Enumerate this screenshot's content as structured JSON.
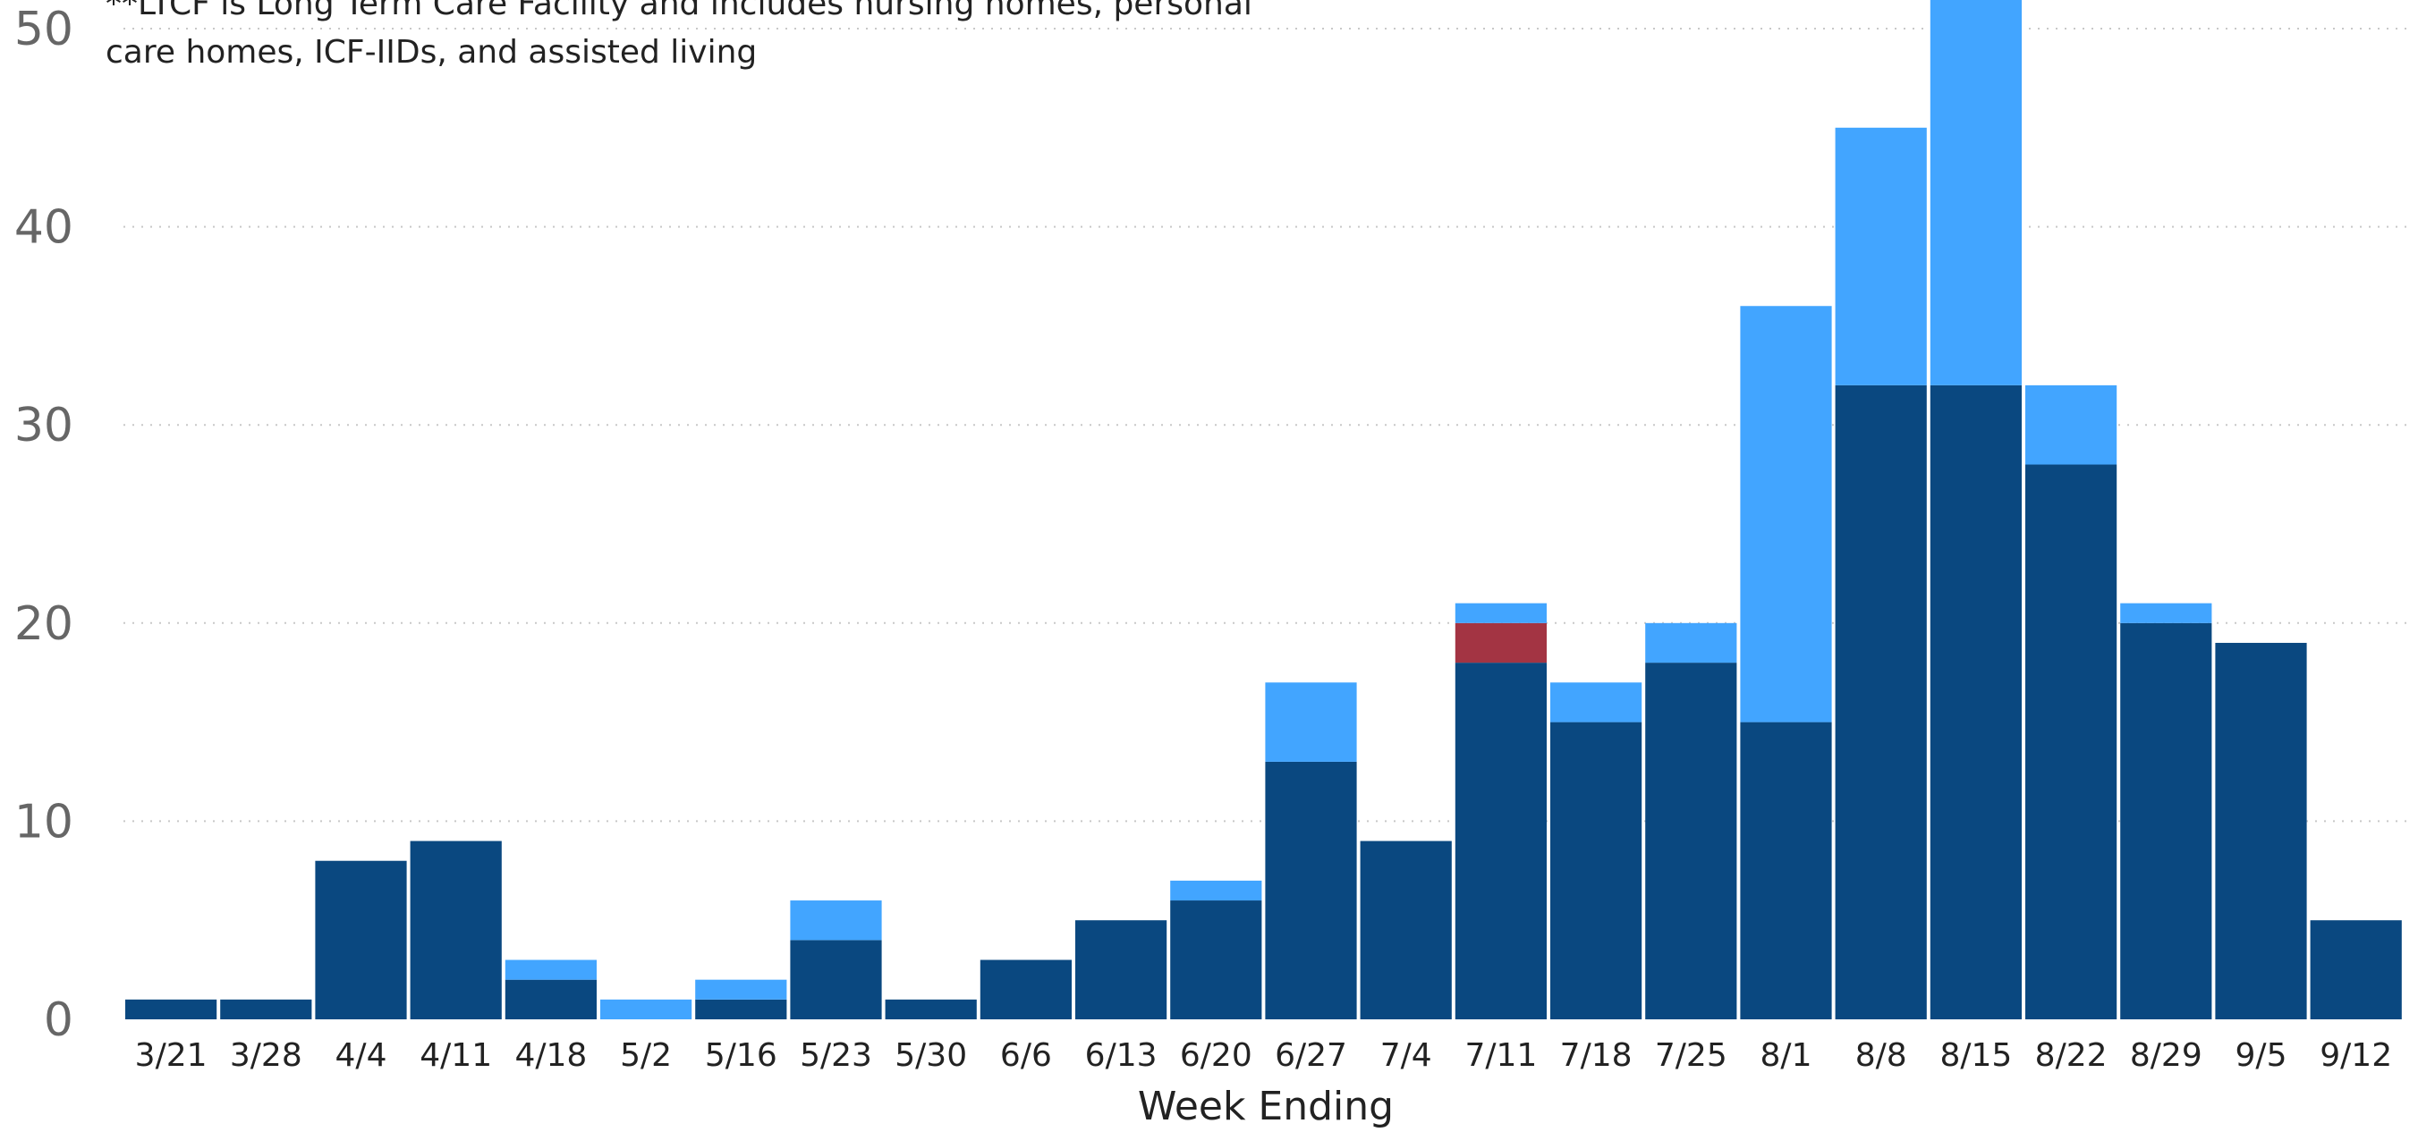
{
  "chart_data": {
    "type": "bar",
    "stacked": true,
    "categories": [
      "3/21",
      "3/28",
      "4/4",
      "4/11",
      "4/18",
      "5/2",
      "5/16",
      "5/23",
      "5/30",
      "6/6",
      "6/13",
      "6/20",
      "6/27",
      "7/4",
      "7/11",
      "7/18",
      "7/25",
      "8/1",
      "8/8",
      "8/15",
      "8/22",
      "8/29",
      "9/5",
      "9/12"
    ],
    "series": [
      {
        "color": "#0a4880",
        "values": [
          1,
          1,
          8,
          9,
          2,
          0,
          1,
          4,
          1,
          3,
          5,
          6,
          13,
          9,
          18,
          15,
          18,
          15,
          32,
          32,
          28,
          20,
          19,
          5
        ]
      },
      {
        "color": "#a33443",
        "values": [
          0,
          0,
          0,
          0,
          0,
          0,
          0,
          0,
          0,
          0,
          0,
          0,
          0,
          0,
          2,
          0,
          0,
          0,
          0,
          0,
          0,
          0,
          0,
          0
        ]
      },
      {
        "color": "#42a5ff",
        "values": [
          0,
          0,
          0,
          0,
          1,
          1,
          1,
          2,
          0,
          0,
          0,
          1,
          4,
          0,
          1,
          2,
          2,
          21,
          13,
          20,
          4,
          1,
          0,
          0
        ]
      }
    ],
    "xlabel": "Week Ending",
    "ylabel": "",
    "yticks": [
      0,
      10,
      20,
      30,
      40,
      50
    ],
    "ylim": [
      0,
      52
    ],
    "grid": true,
    "annotation": {
      "lines": [
        "**LTCF is Long Term Care Facility and includes nursing homes, personal",
        "care homes, ICF-IIDs, and assisted living"
      ]
    }
  }
}
